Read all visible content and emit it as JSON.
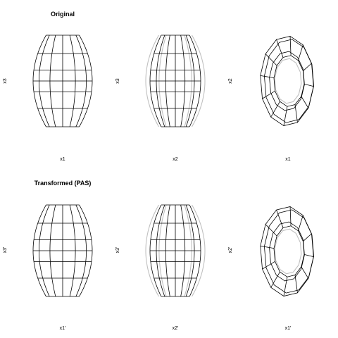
{
  "sections": [
    {
      "title": "Original",
      "panels": [
        {
          "view": "x1-x3",
          "xlabel": "x1",
          "ylabel": "x3"
        },
        {
          "view": "x2-x3",
          "xlabel": "x2",
          "ylabel": "x3"
        },
        {
          "view": "x1-x2",
          "xlabel": "x1",
          "ylabel": "x2"
        }
      ]
    },
    {
      "title": "Transformed (PAS)",
      "panels": [
        {
          "view": "x1-x3",
          "xlabel": "x1'",
          "ylabel": "x3'"
        },
        {
          "view": "x2-x3",
          "xlabel": "x2'",
          "ylabel": "x3'"
        },
        {
          "view": "x1-x2",
          "xlabel": "x1'",
          "ylabel": "x2'"
        }
      ]
    }
  ],
  "colors": {
    "wire": "#000000",
    "hidden_wire": "#c0c0c0",
    "background": "#ffffff"
  }
}
